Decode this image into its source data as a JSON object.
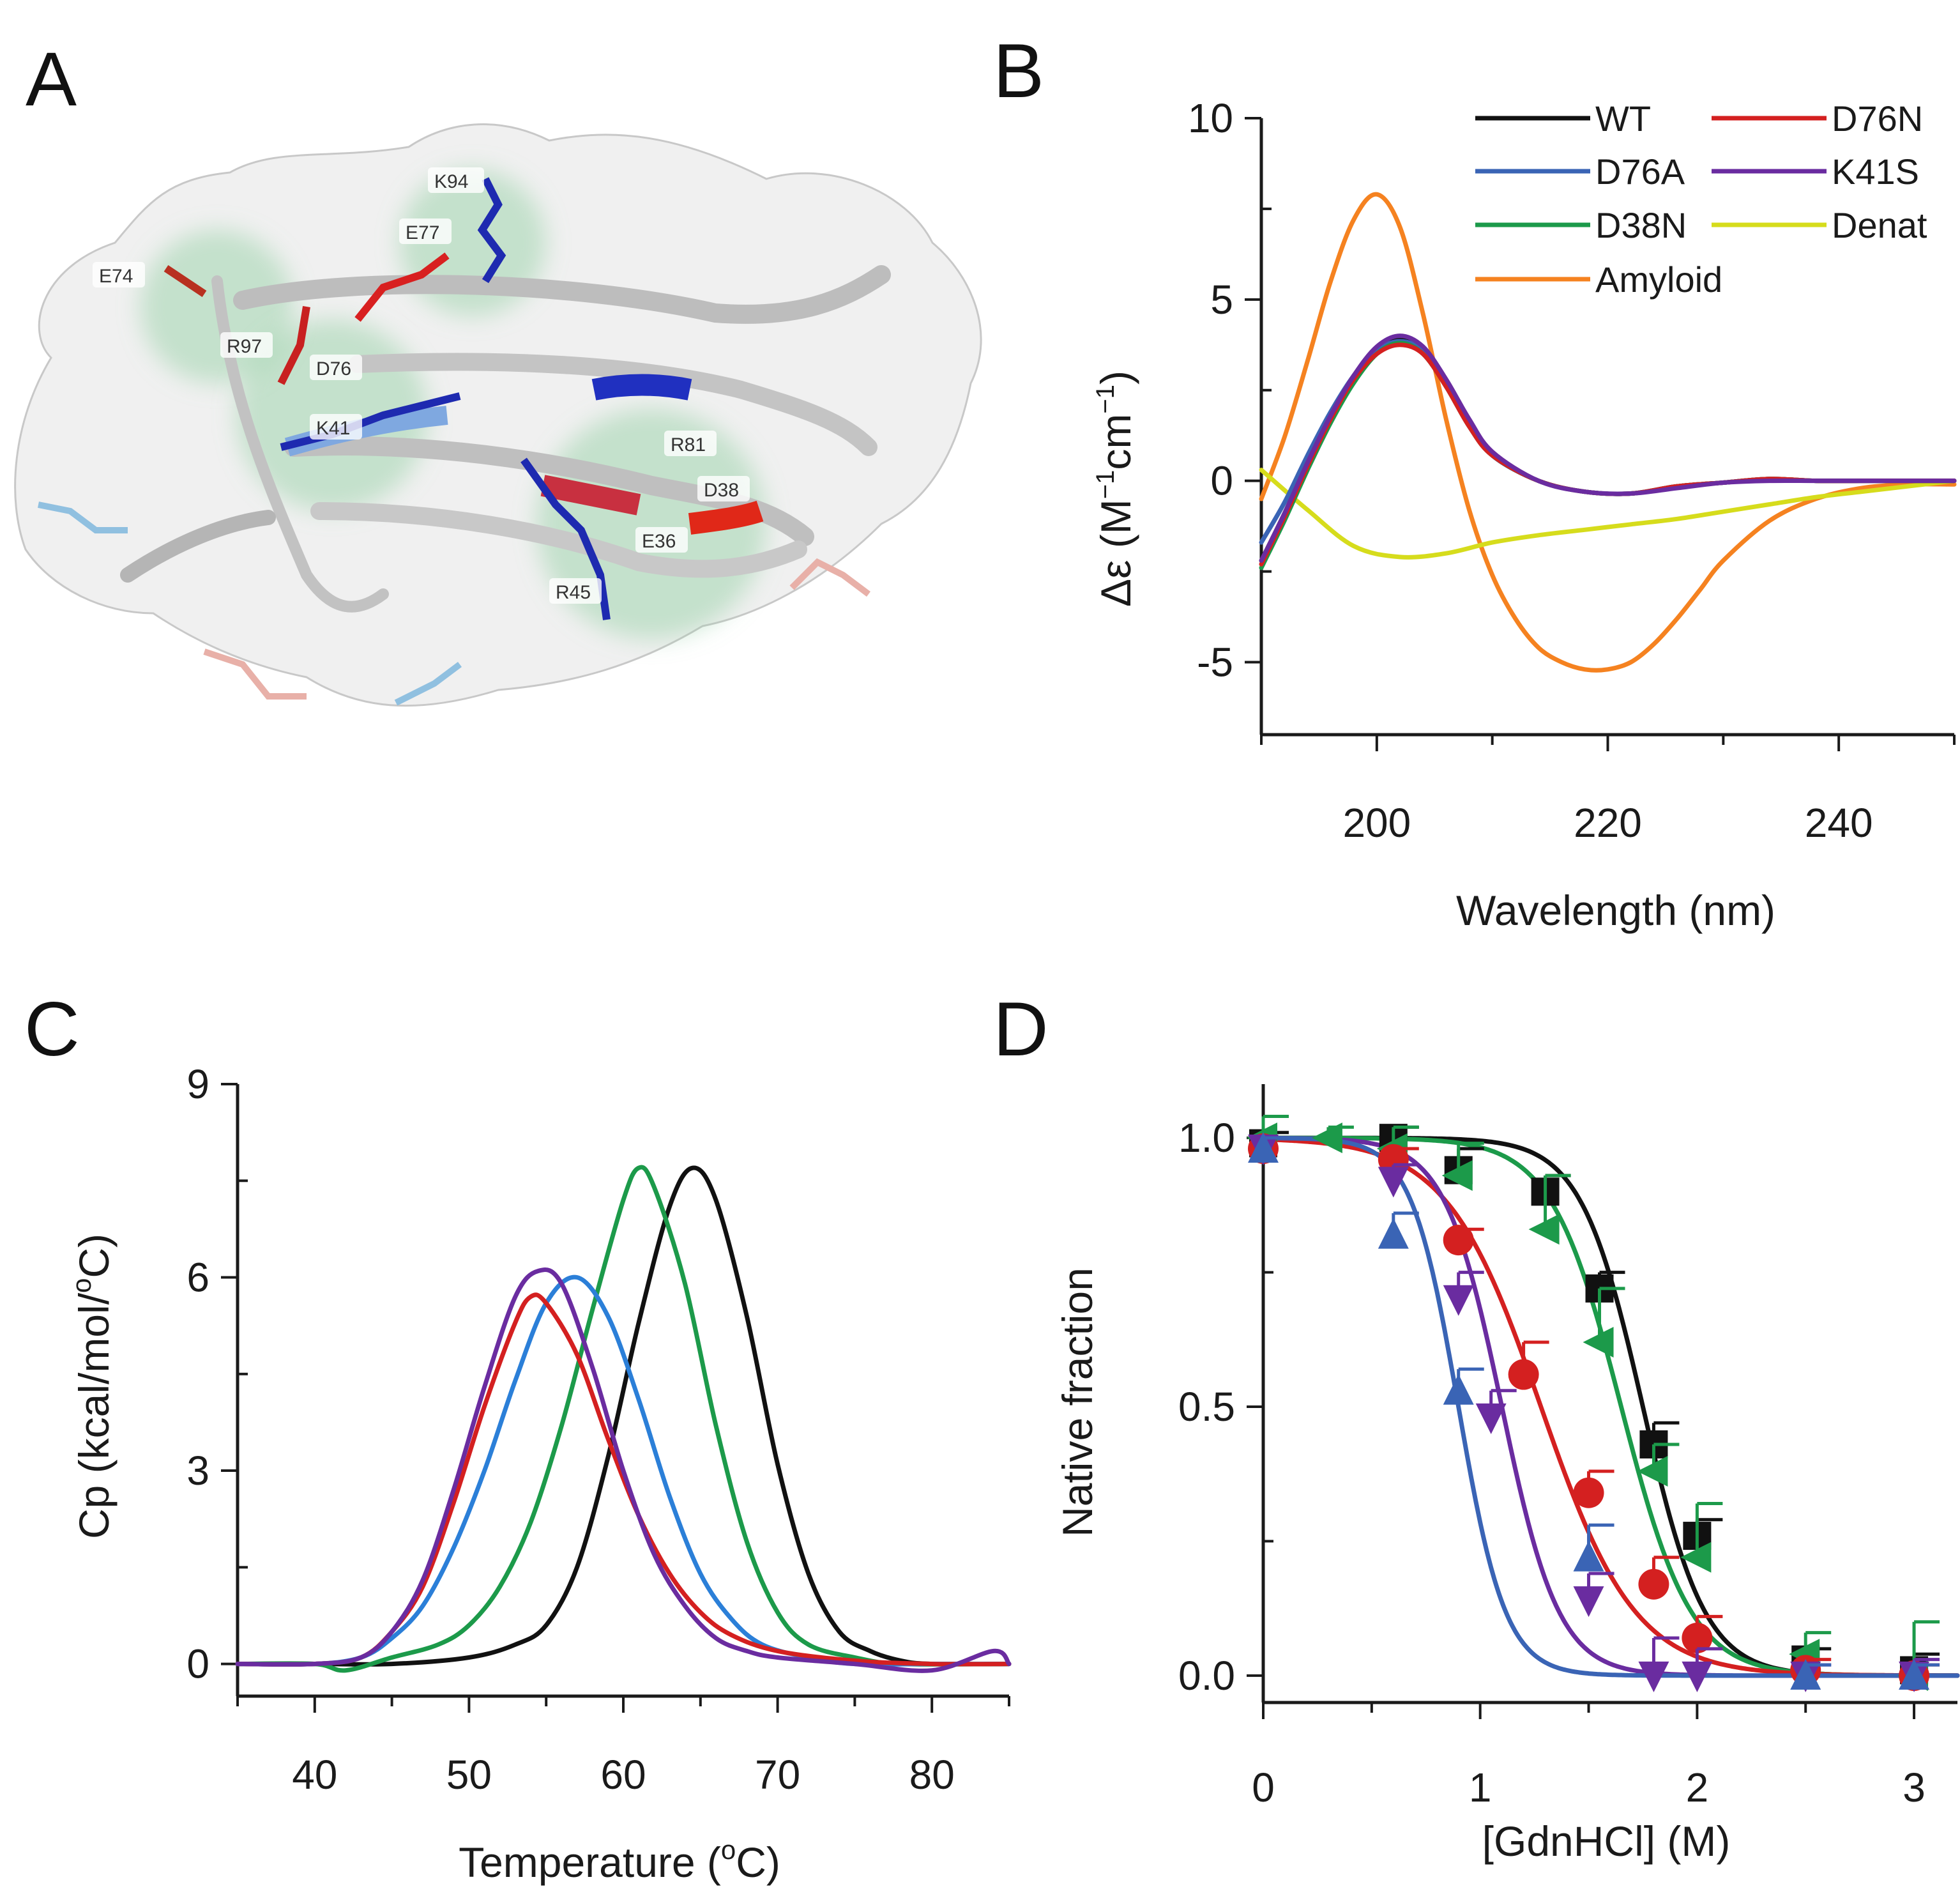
{
  "panels": {
    "A": "A",
    "B": "B",
    "C": "C",
    "D": "D"
  },
  "structure": {
    "residue_labels": [
      "K94",
      "E77",
      "E74",
      "R97",
      "D76",
      "K41",
      "R81",
      "D38",
      "E36",
      "R45"
    ]
  },
  "colors": {
    "WT": "#111111",
    "D76N": "#d42020",
    "D76A": "#3a64b5",
    "K41S": "#6a2ca0",
    "D38N": "#1c9a4a",
    "Denat": "#d6dc1c",
    "Amyloid": "#f58220",
    "C_blue": "#2b7fd8"
  },
  "chart_data": [
    {
      "panel": "B",
      "type": "line",
      "xlabel": "Wavelength (nm)",
      "ylabel_main": "Δε (M",
      "ylabel_sup1": "−1",
      "ylabel_mid": "cm",
      "ylabel_sup2": "−1",
      "ylabel_end": ")",
      "xlim": [
        190,
        250
      ],
      "ylim": [
        -7,
        10
      ],
      "xticks": [
        200,
        220,
        240
      ],
      "yticks": [
        10,
        5,
        0,
        -5
      ],
      "xtick_labels": [
        "200",
        "220",
        "240"
      ],
      "ytick_labels": [
        "10",
        "5",
        "0",
        "-5"
      ],
      "legend_position": "top-right",
      "series": [
        {
          "name": "WT",
          "color": "#111111",
          "x": [
            190,
            192,
            194,
            196,
            198,
            200,
            202,
            204,
            206,
            208,
            210,
            214,
            218,
            222,
            226,
            230,
            234,
            238,
            242,
            246,
            250
          ],
          "y": [
            -2.2,
            -0.9,
            0.5,
            1.8,
            2.9,
            3.6,
            3.9,
            3.6,
            2.7,
            1.6,
            0.7,
            0.0,
            -0.3,
            -0.35,
            -0.15,
            -0.05,
            0.05,
            0.0,
            0.0,
            0.0,
            0.0
          ]
        },
        {
          "name": "D76N",
          "color": "#d42020",
          "x": [
            190,
            192,
            194,
            196,
            198,
            200,
            202,
            204,
            206,
            208,
            210,
            214,
            218,
            222,
            226,
            230,
            234,
            238,
            242,
            246,
            250
          ],
          "y": [
            -2.3,
            -1.0,
            0.4,
            1.7,
            2.8,
            3.5,
            3.75,
            3.5,
            2.6,
            1.5,
            0.7,
            0.0,
            -0.3,
            -0.35,
            -0.15,
            -0.05,
            0.05,
            0.0,
            0.0,
            0.0,
            0.0
          ]
        },
        {
          "name": "D76A",
          "color": "#3a64b5",
          "x": [
            190,
            192,
            194,
            196,
            198,
            200,
            202,
            204,
            206,
            208,
            210,
            214,
            218,
            222,
            226,
            230,
            234,
            238,
            242,
            246,
            250
          ],
          "y": [
            -1.7,
            -0.6,
            0.7,
            1.9,
            2.9,
            3.6,
            3.85,
            3.6,
            2.7,
            1.6,
            0.7,
            0.0,
            -0.3,
            -0.35,
            -0.15,
            -0.05,
            0.05,
            0.0,
            0.0,
            0.0,
            0.0
          ]
        },
        {
          "name": "K41S",
          "color": "#6a2ca0",
          "x": [
            190,
            192,
            194,
            196,
            198,
            200,
            202,
            204,
            206,
            208,
            210,
            214,
            218,
            222,
            226,
            230,
            234,
            238,
            242,
            246,
            250
          ],
          "y": [
            -2.2,
            -0.9,
            0.5,
            1.8,
            2.9,
            3.7,
            4.0,
            3.7,
            2.8,
            1.7,
            0.8,
            0.0,
            -0.3,
            -0.35,
            -0.2,
            -0.05,
            0.0,
            0.0,
            0.0,
            0.0,
            0.0
          ]
        },
        {
          "name": "D38N",
          "color": "#1c9a4a",
          "x": [
            190,
            192,
            194,
            196,
            198,
            200,
            202,
            204,
            206,
            208,
            210,
            214,
            218,
            222,
            226,
            230,
            234,
            238,
            242,
            246,
            250
          ],
          "y": [
            -2.4,
            -1.1,
            0.3,
            1.6,
            2.7,
            3.5,
            3.8,
            3.5,
            2.6,
            1.5,
            0.7,
            0.0,
            -0.3,
            -0.35,
            -0.15,
            -0.05,
            0.05,
            0.0,
            0.0,
            0.0,
            0.0
          ]
        },
        {
          "name": "Denat",
          "color": "#d6dc1c",
          "x": [
            190,
            194,
            198,
            202,
            206,
            210,
            214,
            218,
            222,
            226,
            230,
            234,
            238,
            242,
            246,
            250
          ],
          "y": [
            0.3,
            -0.8,
            -1.8,
            -2.1,
            -2.0,
            -1.7,
            -1.5,
            -1.35,
            -1.2,
            -1.05,
            -0.85,
            -0.65,
            -0.45,
            -0.3,
            -0.15,
            0.0
          ]
        },
        {
          "name": "Amyloid",
          "color": "#f58220",
          "x": [
            190,
            192,
            194,
            196,
            198,
            200,
            202,
            204,
            206,
            208,
            210,
            212,
            214,
            216,
            218,
            220,
            222,
            224,
            226,
            228,
            230,
            234,
            238,
            242,
            246,
            250
          ],
          "y": [
            -0.5,
            1.2,
            3.3,
            5.5,
            7.2,
            7.9,
            7.0,
            4.6,
            1.7,
            -0.8,
            -2.6,
            -3.8,
            -4.6,
            -5.0,
            -5.2,
            -5.2,
            -5.0,
            -4.5,
            -3.8,
            -3.0,
            -2.2,
            -1.1,
            -0.5,
            -0.2,
            -0.1,
            -0.1
          ]
        }
      ]
    },
    {
      "panel": "C",
      "type": "line",
      "xlabel_main": "Temperature (",
      "xlabel_sup": "o",
      "xlabel_end": "C)",
      "ylabel_main": "Cp (kcal/mol/",
      "ylabel_sup": "o",
      "ylabel_end": "C)",
      "xlim": [
        35,
        85
      ],
      "ylim": [
        -0.5,
        9
      ],
      "xticks": [
        40,
        50,
        60,
        70,
        80
      ],
      "yticks": [
        0,
        3,
        6,
        9
      ],
      "xtick_labels": [
        "40",
        "50",
        "60",
        "70",
        "80"
      ],
      "ytick_labels": [
        "0",
        "3",
        "6",
        "9"
      ],
      "series": [
        {
          "color": "#111111",
          "x": [
            35,
            40,
            45,
            50,
            53,
            55,
            57,
            59,
            61,
            63,
            64.5,
            66,
            68,
            70,
            72,
            74,
            76,
            78,
            80,
            85
          ],
          "y": [
            0,
            0,
            0,
            0.1,
            0.3,
            0.6,
            1.5,
            3.2,
            5.3,
            7.1,
            7.7,
            7.2,
            5.4,
            3.1,
            1.4,
            0.5,
            0.2,
            0.05,
            0,
            0
          ]
        },
        {
          "color": "#1c9a4a",
          "x": [
            35,
            40,
            42,
            45,
            48,
            50,
            52,
            54,
            56,
            58,
            60,
            61,
            62,
            64,
            66,
            68,
            70,
            72,
            75,
            78,
            85
          ],
          "y": [
            0,
            0,
            -0.1,
            0.1,
            0.3,
            0.6,
            1.2,
            2.2,
            3.7,
            5.5,
            7.2,
            7.7,
            7.4,
            5.9,
            3.7,
            1.9,
            0.8,
            0.3,
            0.1,
            0,
            0
          ]
        },
        {
          "color": "#2b7fd8",
          "x": [
            35,
            40,
            43,
            45,
            47,
            49,
            51,
            53,
            55,
            57,
            59,
            61,
            63,
            65,
            67,
            69,
            72,
            75,
            80,
            85
          ],
          "y": [
            0,
            0,
            0.1,
            0.4,
            0.9,
            1.8,
            3.0,
            4.4,
            5.6,
            6.0,
            5.4,
            4.1,
            2.6,
            1.4,
            0.7,
            0.3,
            0.1,
            0,
            0,
            0
          ]
        },
        {
          "color": "#d42020",
          "x": [
            35,
            40,
            43,
            45,
            47,
            49,
            51,
            53,
            54,
            55,
            57,
            59,
            61,
            63,
            65,
            67,
            70,
            75,
            80,
            85
          ],
          "y": [
            0,
            0,
            0.1,
            0.5,
            1.2,
            2.5,
            4.0,
            5.3,
            5.7,
            5.6,
            4.8,
            3.5,
            2.3,
            1.4,
            0.8,
            0.45,
            0.2,
            0.05,
            0,
            0
          ]
        },
        {
          "color": "#6a2ca0",
          "x": [
            35,
            40,
            43,
            45,
            47,
            49,
            51,
            53,
            54.5,
            56,
            58,
            60,
            62,
            64,
            66,
            68,
            70,
            75,
            80,
            84,
            85
          ],
          "y": [
            0,
            0,
            0.1,
            0.5,
            1.3,
            2.7,
            4.3,
            5.7,
            6.1,
            5.9,
            4.6,
            3.0,
            1.7,
            0.9,
            0.4,
            0.2,
            0.1,
            0,
            -0.1,
            0.2,
            0
          ]
        }
      ]
    },
    {
      "panel": "D",
      "type": "scatter",
      "xlabel": "[GdnHCl] (M)",
      "ylabel": "Native fraction",
      "xlim": [
        0,
        3.2
      ],
      "ylim": [
        -0.05,
        1.1
      ],
      "xticks": [
        0,
        1,
        2,
        3
      ],
      "yticks": [
        0.0,
        0.5,
        1.0
      ],
      "xtick_labels": [
        "0",
        "1",
        "2",
        "3"
      ],
      "ytick_labels": [
        "0.0",
        "0.5",
        "1.0"
      ],
      "series": [
        {
          "color": "#111111",
          "marker": "square",
          "midpoint": 1.75,
          "slope": 7.0,
          "x": [
            0,
            0.6,
            0.9,
            1.3,
            1.55,
            1.8,
            2.0,
            2.5,
            3.0
          ],
          "y": [
            0.99,
            1.0,
            0.94,
            0.9,
            0.72,
            0.43,
            0.26,
            0.03,
            0.01
          ],
          "err": [
            0.02,
            0.02,
            0.04,
            0.03,
            0.03,
            0.04,
            0.03,
            0.02,
            0.03
          ]
        },
        {
          "color": "#1c9a4a",
          "marker": "triangle-left",
          "midpoint": 1.65,
          "slope": 6.2,
          "x": [
            0,
            0.3,
            0.6,
            0.9,
            1.3,
            1.55,
            1.8,
            2.0,
            2.5,
            3.0
          ],
          "y": [
            1.0,
            1.0,
            0.98,
            0.93,
            0.83,
            0.62,
            0.38,
            0.22,
            0.04,
            0.0
          ],
          "err": [
            0.04,
            0.02,
            0.04,
            0.06,
            0.1,
            0.1,
            0.05,
            0.1,
            0.04,
            0.1
          ]
        },
        {
          "color": "#d42020",
          "marker": "circle",
          "midpoint": 1.28,
          "slope": 4.6,
          "x": [
            0,
            0.6,
            0.9,
            1.2,
            1.5,
            1.8,
            2.0,
            2.5,
            3.0
          ],
          "y": [
            0.98,
            0.96,
            0.81,
            0.56,
            0.34,
            0.17,
            0.07,
            0.01,
            0.0
          ],
          "err": [
            0.02,
            0.02,
            0.02,
            0.06,
            0.04,
            0.05,
            0.04,
            0.02,
            0.02
          ]
        },
        {
          "color": "#6a2ca0",
          "marker": "triangle-down",
          "midpoint": 1.1,
          "slope": 7.6,
          "x": [
            0,
            0.6,
            0.9,
            1.05,
            1.5,
            1.8,
            2.0,
            2.5,
            3.0
          ],
          "y": [
            0.98,
            0.92,
            0.7,
            0.48,
            0.14,
            0.0,
            0.0,
            0.0,
            0.0
          ],
          "err": [
            0.02,
            0.03,
            0.05,
            0.05,
            0.05,
            0.07,
            0.05,
            0.02,
            0.03
          ]
        },
        {
          "color": "#3a64b5",
          "marker": "triangle-up",
          "midpoint": 0.9,
          "slope": 9.2,
          "x": [
            0,
            0.6,
            0.9,
            1.5,
            2.5,
            3.0
          ],
          "y": [
            0.98,
            0.82,
            0.53,
            0.22,
            0.0,
            0.0
          ],
          "err": [
            0.02,
            0.04,
            0.04,
            0.06,
            0.02,
            0.02
          ]
        }
      ]
    }
  ]
}
